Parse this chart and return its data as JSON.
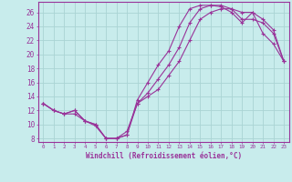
{
  "xlabel": "Windchill (Refroidissement éolien,°C)",
  "background_color": "#c8ecec",
  "grid_color": "#aad4d4",
  "line_color": "#993399",
  "xlim": [
    -0.5,
    23.5
  ],
  "ylim": [
    7.5,
    27.5
  ],
  "xticks": [
    0,
    1,
    2,
    3,
    4,
    5,
    6,
    7,
    8,
    9,
    10,
    11,
    12,
    13,
    14,
    15,
    16,
    17,
    18,
    19,
    20,
    21,
    22,
    23
  ],
  "yticks": [
    8,
    10,
    12,
    14,
    16,
    18,
    20,
    22,
    24,
    26
  ],
  "line1_x": [
    0,
    1,
    2,
    3,
    4,
    5,
    6,
    7,
    8,
    9,
    10,
    11,
    12,
    13,
    14,
    15,
    16,
    17,
    18,
    19,
    20,
    21,
    22,
    23
  ],
  "line1_y": [
    13,
    12,
    11.5,
    12,
    10.5,
    10,
    8,
    8,
    8.5,
    13.5,
    16,
    18.5,
    20.5,
    24,
    26.5,
    27,
    27,
    26.8,
    26,
    24.5,
    26,
    23,
    21.5,
    19
  ],
  "line2_x": [
    0,
    1,
    2,
    3,
    4,
    5,
    6,
    7,
    8,
    9,
    10,
    11,
    12,
    13,
    14,
    15,
    16,
    17,
    18,
    19,
    20,
    21,
    22,
    23
  ],
  "line2_y": [
    13,
    12,
    11.5,
    12,
    10.5,
    10,
    8,
    8,
    8.5,
    13.0,
    14.5,
    16.5,
    18.5,
    21,
    24.5,
    26.5,
    27,
    27,
    26.5,
    25,
    25,
    24.5,
    23,
    19
  ],
  "line3_x": [
    0,
    1,
    2,
    3,
    4,
    5,
    6,
    7,
    8,
    9,
    10,
    11,
    12,
    13,
    14,
    15,
    16,
    17,
    18,
    19,
    20,
    21,
    22,
    23
  ],
  "line3_y": [
    13,
    12,
    11.5,
    11.5,
    10.5,
    9.8,
    8,
    8,
    9,
    13,
    14,
    15,
    17,
    19,
    22,
    25,
    26,
    26.5,
    26.5,
    26,
    26,
    25,
    23.5,
    19
  ]
}
